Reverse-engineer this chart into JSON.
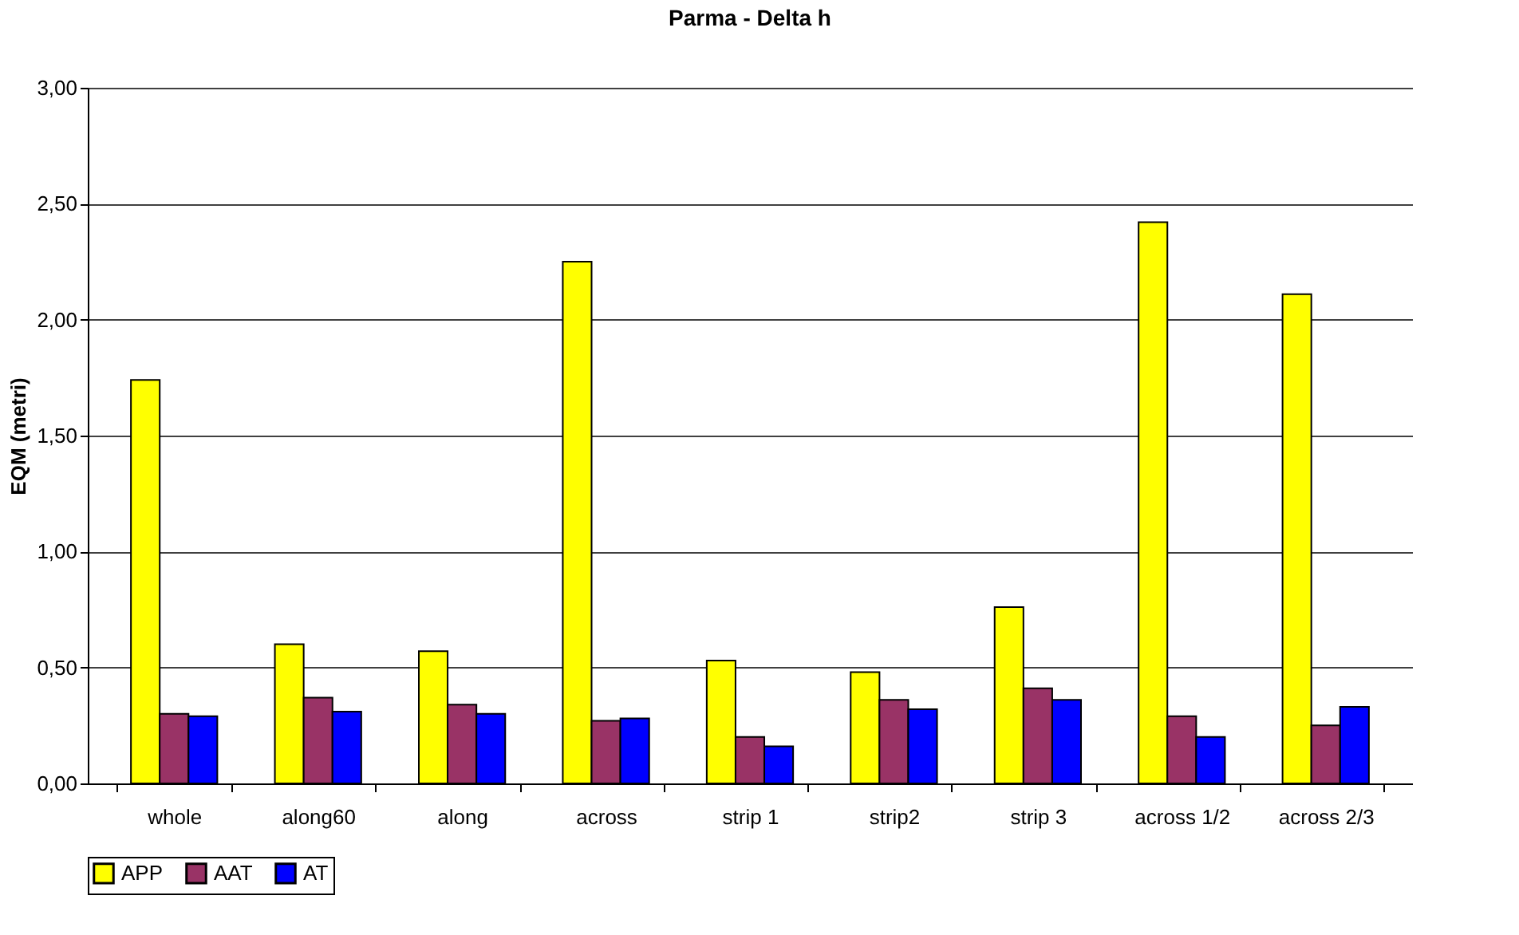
{
  "chart_data": {
    "type": "bar",
    "title": "Parma - Delta h",
    "ylabel": "EQM (metri)",
    "categories": [
      "whole",
      "along60",
      "along",
      "across",
      "strip 1",
      "strip2",
      "strip 3",
      "across 1/2",
      "across 2/3"
    ],
    "series": [
      {
        "name": "APP",
        "color": "#ffff00",
        "values": [
          1.74,
          0.6,
          0.57,
          2.25,
          0.53,
          0.48,
          0.76,
          2.42,
          2.11
        ]
      },
      {
        "name": "AAT",
        "color": "#993366",
        "values": [
          0.3,
          0.37,
          0.34,
          0.27,
          0.2,
          0.36,
          0.41,
          0.29,
          0.25
        ]
      },
      {
        "name": "AT",
        "color": "#0000ff",
        "values": [
          0.29,
          0.31,
          0.3,
          0.28,
          0.16,
          0.32,
          0.36,
          0.2,
          0.33
        ]
      }
    ],
    "ylim": [
      0,
      3
    ],
    "yticks": [
      {
        "value": 0,
        "label": "0,00"
      },
      {
        "value": 0.5,
        "label": "0,50"
      },
      {
        "value": 1,
        "label": "1,00"
      },
      {
        "value": 1.5,
        "label": "1,50"
      },
      {
        "value": 2,
        "label": "2,00"
      },
      {
        "value": 2.5,
        "label": "2,50"
      },
      {
        "value": 3,
        "label": "3,00"
      }
    ],
    "grid": "y",
    "legend": "bottom"
  }
}
